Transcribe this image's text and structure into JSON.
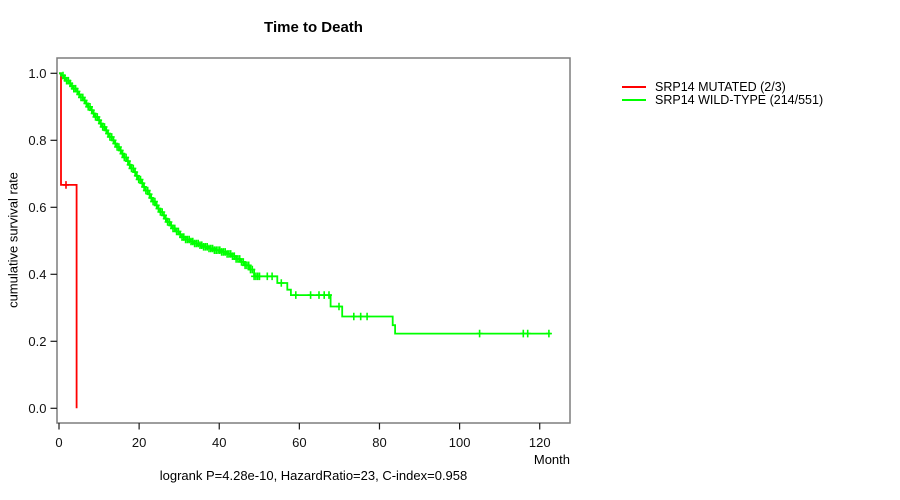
{
  "chart_data": {
    "type": "line",
    "subtype": "kaplan-meier-step-curves",
    "title": "Time to Death",
    "xlabel": "Month",
    "ylabel": "cumulative survival rate",
    "annotation": "logrank P=4.28e-10, HazardRatio=23, C-index=0.958",
    "xlim": [
      0,
      127.75
    ],
    "ylim": [
      0,
      1
    ],
    "grid": false,
    "legend_position": "right-outside",
    "x_tick_values": [
      0,
      20,
      40,
      60,
      80,
      100,
      120
    ],
    "x_tick_labels": [
      "0",
      "20",
      "40",
      "60",
      "80",
      "100",
      "120"
    ],
    "y_tick_values": [
      0,
      0.2,
      0.4,
      0.6,
      0.8,
      1.0
    ],
    "y_tick_labels": [
      "0.0",
      "0.2",
      "0.4",
      "0.6",
      "0.8",
      "1.0"
    ],
    "series": [
      {
        "name": "SRP14 MUTATED (2/3)",
        "color": "#ff0000",
        "steps": [
          [
            0,
            1.0
          ],
          [
            0.5,
            0.667
          ],
          [
            4.4,
            0.0
          ]
        ],
        "censor_times": [
          1.75
        ]
      },
      {
        "name": "SRP14 WILD-TYPE (214/551)",
        "color": "#00ff00",
        "steps": [
          [
            0,
            1.0
          ],
          [
            0.6,
            0.993
          ],
          [
            1.2,
            0.986
          ],
          [
            1.8,
            0.978
          ],
          [
            2.4,
            0.97
          ],
          [
            3.0,
            0.962
          ],
          [
            3.6,
            0.954
          ],
          [
            4.2,
            0.946
          ],
          [
            4.8,
            0.937
          ],
          [
            5.4,
            0.928
          ],
          [
            6.0,
            0.919
          ],
          [
            6.6,
            0.91
          ],
          [
            7.2,
            0.9
          ],
          [
            7.8,
            0.89
          ],
          [
            8.4,
            0.88
          ],
          [
            9.0,
            0.87
          ],
          [
            9.6,
            0.86
          ],
          [
            10.2,
            0.85
          ],
          [
            10.8,
            0.84
          ],
          [
            11.4,
            0.83
          ],
          [
            12.0,
            0.82
          ],
          [
            12.6,
            0.81
          ],
          [
            13.2,
            0.8
          ],
          [
            13.8,
            0.79
          ],
          [
            14.4,
            0.78
          ],
          [
            15.0,
            0.77
          ],
          [
            15.6,
            0.76
          ],
          [
            16.2,
            0.749
          ],
          [
            16.8,
            0.738
          ],
          [
            17.4,
            0.727
          ],
          [
            18.0,
            0.716
          ],
          [
            18.6,
            0.705
          ],
          [
            19.2,
            0.694
          ],
          [
            19.8,
            0.683
          ],
          [
            20.4,
            0.672
          ],
          [
            21.0,
            0.661
          ],
          [
            21.6,
            0.65
          ],
          [
            22.2,
            0.639
          ],
          [
            22.8,
            0.628
          ],
          [
            23.4,
            0.617
          ],
          [
            24.0,
            0.606
          ],
          [
            24.6,
            0.596
          ],
          [
            25.2,
            0.586
          ],
          [
            25.8,
            0.576
          ],
          [
            26.4,
            0.566
          ],
          [
            27.0,
            0.556
          ],
          [
            27.7,
            0.546
          ],
          [
            28.4,
            0.537
          ],
          [
            29.1,
            0.528
          ],
          [
            29.9,
            0.519
          ],
          [
            30.7,
            0.511
          ],
          [
            31.6,
            0.504
          ],
          [
            32.6,
            0.498
          ],
          [
            33.7,
            0.492
          ],
          [
            34.9,
            0.487
          ],
          [
            36.1,
            0.482
          ],
          [
            37.4,
            0.477
          ],
          [
            38.8,
            0.472
          ],
          [
            40.2,
            0.467
          ],
          [
            41.6,
            0.461
          ],
          [
            43.0,
            0.454
          ],
          [
            44.2,
            0.446
          ],
          [
            45.3,
            0.437
          ],
          [
            46.4,
            0.427
          ],
          [
            47.5,
            0.414
          ],
          [
            48.7,
            0.394
          ],
          [
            54.5,
            0.374
          ],
          [
            57.0,
            0.354
          ],
          [
            57.9,
            0.338
          ],
          [
            67.8,
            0.304
          ],
          [
            70.7,
            0.274
          ],
          [
            83.3,
            0.248
          ],
          [
            83.9,
            0.223
          ],
          [
            122.7,
            0.223
          ]
        ],
        "censor_times": [
          1,
          1.45,
          1.9,
          2.35,
          2.8,
          3.25,
          3.7,
          4.15,
          4.6,
          5.05,
          5.5,
          5.95,
          6.4,
          6.85,
          7.3,
          7.75,
          8.2,
          8.65,
          9.1,
          9.55,
          10,
          10.45,
          10.9,
          11.35,
          11.8,
          12.25,
          12.7,
          13.15,
          13.6,
          14.05,
          14.5,
          14.95,
          15.4,
          15.85,
          16.3,
          16.75,
          17.2,
          17.65,
          18.1,
          18.55,
          19,
          19.45,
          19.9,
          20.35,
          20.8,
          21.25,
          21.7,
          22.15,
          22.6,
          23.05,
          23.5,
          23.95,
          24.4,
          24.85,
          25.3,
          25.75,
          26.2,
          26.65,
          27.1,
          27.55,
          28,
          28.45,
          28.9,
          29.35,
          29.8,
          30.25,
          30.7,
          31.15,
          31.6,
          32.05,
          32.5,
          32.95,
          33.4,
          33.85,
          34.3,
          34.75,
          35.2,
          35.65,
          36.1,
          36.55,
          37,
          37.45,
          37.9,
          38.35,
          38.8,
          39.25,
          39.7,
          40.15,
          40.6,
          41.05,
          41.5,
          41.95,
          42.4,
          42.85,
          43.3,
          43.75,
          44.2,
          44.65,
          45.1,
          45.55,
          46,
          46.45,
          46.9,
          47.35,
          47.8,
          48.25,
          48.7,
          49.15,
          49.6,
          50.05,
          52,
          53.2,
          55.5,
          59.1,
          62.8,
          64.9,
          66.2,
          67.4,
          69.9,
          73.6,
          75.3,
          76.9,
          105,
          115.9,
          117,
          122.3
        ]
      }
    ]
  }
}
